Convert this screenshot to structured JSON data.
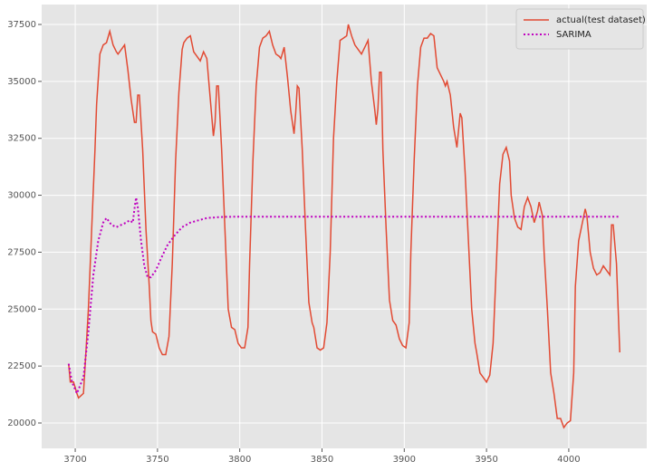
{
  "chart_data": {
    "type": "line",
    "xlim": [
      3679.6,
      4047.4
    ],
    "ylim": [
      18886,
      38375
    ],
    "xticks": [
      3700,
      3750,
      3800,
      3850,
      3900,
      3950,
      4000
    ],
    "yticks": [
      20000,
      22500,
      25000,
      27500,
      30000,
      32500,
      35000,
      37500
    ],
    "grid": true,
    "legend": "upper right",
    "series": [
      {
        "name": "actual(test dataset)",
        "color": "#e24a33",
        "style": "solid",
        "x": [
          3696,
          3697,
          3699,
          3701,
          3702,
          3705,
          3706,
          3708,
          3710,
          3712,
          3713,
          3715,
          3717,
          3719,
          3721,
          3723,
          3725,
          3726,
          3728,
          3730,
          3732,
          3734,
          3736,
          3737,
          3738,
          3739,
          3741,
          3743,
          3745,
          3746,
          3747,
          3749,
          3751,
          3753,
          3755,
          3757,
          3759,
          3761,
          3763,
          3765,
          3766,
          3768,
          3770,
          3772,
          3774,
          3776,
          3778,
          3780,
          3782,
          3784,
          3785,
          3786,
          3787,
          3789,
          3791,
          3793,
          3795,
          3797,
          3799,
          3801,
          3803,
          3805,
          3806,
          3808,
          3810,
          3812,
          3814,
          3816,
          3818,
          3820,
          3822,
          3824,
          3825,
          3827,
          3829,
          3831,
          3833,
          3834,
          3835,
          3836,
          3838,
          3840,
          3842,
          3844,
          3845,
          3847,
          3849,
          3851,
          3853,
          3855,
          3857,
          3859,
          3861,
          3863,
          3865,
          3866,
          3868,
          3870,
          3872,
          3874,
          3876,
          3878,
          3880,
          3882,
          3883,
          3884,
          3885,
          3886,
          3887,
          3889,
          3891,
          3893,
          3895,
          3897,
          3899,
          3901,
          3903,
          3904,
          3906,
          3908,
          3910,
          3912,
          3914,
          3916,
          3918,
          3920,
          3922,
          3924,
          3925,
          3926,
          3928,
          3930,
          3932,
          3934,
          3935,
          3937,
          3939,
          3941,
          3943,
          3944,
          3946,
          3948,
          3950,
          3952,
          3954,
          3956,
          3958,
          3960,
          3962,
          3964,
          3965,
          3967,
          3969,
          3971,
          3973,
          3975,
          3977,
          3979,
          3981,
          3982,
          3984,
          3985,
          3987,
          3989,
          3991,
          3993,
          3995,
          3997,
          3999,
          4001,
          4003,
          4004,
          4006,
          4008,
          4010,
          4011,
          4013,
          4015,
          4017,
          4019,
          4021,
          4023,
          4025,
          4026,
          4027,
          4029,
          4031
        ],
        "values": [
          22600,
          21800,
          21800,
          21300,
          21100,
          21300,
          22500,
          25000,
          28500,
          32000,
          34000,
          36200,
          36600,
          36700,
          37200,
          36600,
          36300,
          36200,
          36400,
          36600,
          35500,
          34200,
          33200,
          33200,
          34400,
          34400,
          32000,
          28500,
          26000,
          24500,
          24000,
          23900,
          23300,
          23000,
          23000,
          23800,
          27000,
          31500,
          34500,
          36400,
          36700,
          36900,
          37000,
          36300,
          36100,
          35900,
          36300,
          36000,
          34300,
          32600,
          33200,
          34800,
          34800,
          32000,
          28500,
          25000,
          24200,
          24100,
          23500,
          23300,
          23300,
          24200,
          27000,
          31500,
          34800,
          36500,
          36900,
          37000,
          37200,
          36600,
          36200,
          36100,
          36000,
          36500,
          35200,
          33700,
          32700,
          33600,
          34800,
          34700,
          32000,
          28500,
          25300,
          24400,
          24200,
          23300,
          23200,
          23300,
          24400,
          27500,
          32500,
          35000,
          36800,
          36900,
          37000,
          37500,
          37000,
          36600,
          36400,
          36200,
          36500,
          36800,
          35000,
          33800,
          33100,
          33800,
          35400,
          35400,
          32000,
          28500,
          25400,
          24500,
          24300,
          23700,
          23400,
          23300,
          24400,
          27500,
          31500,
          34800,
          36500,
          36900,
          36900,
          37100,
          37000,
          35600,
          35300,
          35000,
          34800,
          35000,
          34400,
          33000,
          32100,
          33600,
          33400,
          31000,
          28000,
          25000,
          23500,
          23100,
          22200,
          22000,
          21800,
          22100,
          23500,
          27000,
          30500,
          31800,
          32100,
          31500,
          30000,
          29000,
          28600,
          28500,
          29500,
          29900,
          29500,
          28800,
          29300,
          29700,
          29100,
          27500,
          25000,
          22200,
          21300,
          20200,
          20200,
          19800,
          20000,
          20100,
          22200,
          26000,
          28000,
          28700,
          29400,
          29100,
          27500,
          26800,
          26500,
          26600,
          26900,
          26700,
          26500,
          28700,
          28700,
          27000,
          23100
        ]
      },
      {
        "name": "SARIMA",
        "color": "#bf00bf",
        "style": "dotted",
        "x": [
          3696,
          3698,
          3701,
          3705,
          3708,
          3711,
          3714,
          3717,
          3719,
          3722,
          3725,
          3728,
          3731,
          3733,
          3735,
          3736,
          3737,
          3738,
          3740,
          3742,
          3744,
          3746,
          3749,
          3752,
          3756,
          3760,
          3765,
          3770,
          3775,
          3780,
          3790,
          3800,
          3850,
          3900,
          3950,
          4000,
          4031
        ],
        "values": [
          22600,
          21800,
          21300,
          22000,
          24000,
          26500,
          28000,
          28800,
          29000,
          28700,
          28600,
          28700,
          28800,
          28900,
          28800,
          29400,
          29900,
          29500,
          28000,
          26900,
          26400,
          26400,
          26700,
          27200,
          27800,
          28200,
          28600,
          28800,
          28900,
          29000,
          29050,
          29060,
          29060,
          29060,
          29060,
          29060,
          29060
        ]
      }
    ]
  }
}
